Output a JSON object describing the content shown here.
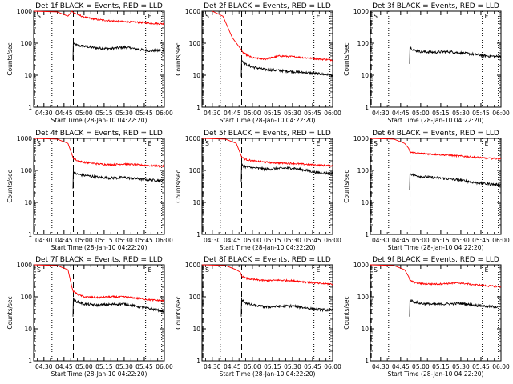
{
  "chart_data": [
    {
      "type": "line",
      "title": "Det 1f BLACK = Events, RED = LLD",
      "xlabel": "Start Time (28-Jan-10 04:22:20)",
      "ylabel": "Counts/sec",
      "yscale": "log",
      "ylim": [
        1,
        1000
      ],
      "xlim": [
        "04:22:20",
        "06:00:00"
      ],
      "x_ticks": [
        "04:30",
        "04:45",
        "05:00",
        "05:15",
        "05:30",
        "05:45",
        "06:00"
      ],
      "y_ticks": [
        "1",
        "10",
        "100",
        "1000"
      ],
      "markers": [
        {
          "label": "S",
          "time": "04:23",
          "style": "dashed"
        },
        {
          "time": "04:35",
          "style": "dotted"
        },
        {
          "time": "04:52",
          "style": "dashed"
        },
        {
          "label": "E",
          "time": "05:43",
          "style": "dotted"
        },
        {
          "time": "05:58",
          "style": "dotted"
        }
      ],
      "x": [
        "04:52",
        "04:55",
        "05:00",
        "05:10",
        "05:20",
        "05:30",
        "05:40",
        "05:50",
        "06:00"
      ],
      "series": [
        {
          "name": "BLACK = Events",
          "color": "#000000",
          "values": [
            100,
            85,
            80,
            70,
            68,
            75,
            65,
            58,
            60
          ]
        },
        {
          "name": "RED = LLD",
          "color": "#ff0000",
          "values": [
            900,
            800,
            650,
            550,
            500,
            470,
            450,
            420,
            400
          ]
        }
      ],
      "red_x": [
        "04:35",
        "04:40",
        "04:45",
        "04:52",
        "05:00",
        "05:20",
        "05:40",
        "06:00"
      ]
    },
    {
      "type": "line",
      "title": "Det 2f BLACK = Events, RED = LLD",
      "xlabel": "Start Time (28-Jan-10 04:22:20)",
      "ylabel": "Counts/sec",
      "yscale": "log",
      "ylim": [
        1,
        1000
      ],
      "x_ticks": [
        "04:30",
        "04:45",
        "05:00",
        "05:15",
        "05:30",
        "05:45",
        "06:00"
      ],
      "y_ticks": [
        "1",
        "10",
        "100",
        "1000"
      ],
      "x": [
        "04:52",
        "04:55",
        "05:00",
        "05:10",
        "05:20",
        "05:30",
        "05:40",
        "05:50",
        "06:00"
      ],
      "series": [
        {
          "name": "BLACK = Events",
          "color": "#000000",
          "values": [
            30,
            22,
            18,
            15,
            14,
            13,
            12,
            11,
            10
          ]
        },
        {
          "name": "RED = LLD",
          "color": "#ff0000",
          "values": [
            55,
            45,
            35,
            32,
            40,
            38,
            35,
            32,
            30
          ]
        }
      ],
      "red_early": [
        {
          "t": "04:30",
          "v": 1000
        },
        {
          "t": "04:38",
          "v": 700
        },
        {
          "t": "04:45",
          "v": 150
        },
        {
          "t": "04:52",
          "v": 60
        }
      ]
    },
    {
      "type": "line",
      "title": "Det 3f BLACK = Events, RED = LLD",
      "xlabel": "Start Time (28-Jan-10 04:22:20)",
      "ylabel": "Counts/sec",
      "yscale": "log",
      "ylim": [
        1,
        1000
      ],
      "x_ticks": [
        "04:30",
        "04:45",
        "05:00",
        "05:15",
        "05:30",
        "05:45",
        "06:00"
      ],
      "y_ticks": [
        "1",
        "10",
        "100",
        "1000"
      ],
      "x": [
        "04:52",
        "04:55",
        "05:00",
        "05:10",
        "05:20",
        "05:30",
        "05:40",
        "05:50",
        "06:00"
      ],
      "series": [
        {
          "name": "BLACK = Events",
          "color": "#000000",
          "values": [
            75,
            60,
            55,
            52,
            55,
            50,
            45,
            40,
            38
          ]
        }
      ]
    },
    {
      "type": "line",
      "title": "Det 4f BLACK = Events, RED = LLD",
      "xlabel": "Start Time (28-Jan-10 04:22:20)",
      "ylabel": "Counts/sec",
      "yscale": "log",
      "ylim": [
        1,
        1000
      ],
      "x_ticks": [
        "04:30",
        "04:45",
        "05:00",
        "05:15",
        "05:30",
        "05:45",
        "06:00"
      ],
      "y_ticks": [
        "1",
        "10",
        "100",
        "1000"
      ],
      "x": [
        "04:52",
        "04:55",
        "05:00",
        "05:10",
        "05:20",
        "05:30",
        "05:40",
        "05:50",
        "06:00"
      ],
      "series": [
        {
          "name": "BLACK = Events",
          "color": "#000000",
          "values": [
            90,
            75,
            70,
            62,
            58,
            60,
            55,
            50,
            48
          ]
        },
        {
          "name": "RED = LLD",
          "color": "#ff0000",
          "values": [
            240,
            200,
            180,
            160,
            150,
            160,
            150,
            140,
            135
          ]
        }
      ]
    },
    {
      "type": "line",
      "title": "Det 5f BLACK = Events, RED = LLD",
      "xlabel": "Start Time (28-Jan-10 04:22:20)",
      "ylabel": "Counts/sec",
      "yscale": "log",
      "ylim": [
        1,
        1000
      ],
      "x_ticks": [
        "04:30",
        "04:45",
        "05:00",
        "05:15",
        "05:30",
        "05:45",
        "06:00"
      ],
      "y_ticks": [
        "1",
        "10",
        "100",
        "1000"
      ],
      "x": [
        "04:52",
        "04:55",
        "05:00",
        "05:10",
        "05:20",
        "05:30",
        "05:40",
        "05:50",
        "06:00"
      ],
      "series": [
        {
          "name": "BLACK = Events",
          "color": "#000000",
          "values": [
            150,
            130,
            120,
            110,
            115,
            120,
            100,
            85,
            80
          ]
        },
        {
          "name": "RED = LLD",
          "color": "#ff0000",
          "values": [
            260,
            220,
            200,
            180,
            170,
            165,
            155,
            145,
            140
          ]
        }
      ]
    },
    {
      "type": "line",
      "title": "Det 6f BLACK = Events, RED = LLD",
      "xlabel": "Start Time (28-Jan-10 04:22:20)",
      "ylabel": "Counts/sec",
      "yscale": "log",
      "ylim": [
        1,
        1000
      ],
      "x_ticks": [
        "04:30",
        "04:45",
        "05:00",
        "05:15",
        "05:30",
        "05:45",
        "06:00"
      ],
      "y_ticks": [
        "1",
        "10",
        "100",
        "1000"
      ],
      "x": [
        "04:52",
        "04:55",
        "05:00",
        "05:10",
        "05:20",
        "05:30",
        "05:40",
        "05:50",
        "06:00"
      ],
      "series": [
        {
          "name": "BLACK = Events",
          "color": "#000000",
          "values": [
            80,
            70,
            65,
            60,
            55,
            50,
            42,
            38,
            35
          ]
        },
        {
          "name": "RED = LLD",
          "color": "#ff0000",
          "values": [
            380,
            350,
            340,
            320,
            300,
            280,
            260,
            240,
            230
          ]
        }
      ]
    },
    {
      "type": "line",
      "title": "Det 7f BLACK = Events, RED = LLD",
      "xlabel": "Start Time (28-Jan-10 04:22:20)",
      "ylabel": "Counts/sec",
      "yscale": "log",
      "ylim": [
        1,
        1000
      ],
      "x_ticks": [
        "04:30",
        "04:45",
        "05:00",
        "05:15",
        "05:30",
        "05:45",
        "06:00"
      ],
      "y_ticks": [
        "1",
        "10",
        "100",
        "1000"
      ],
      "x": [
        "04:52",
        "04:55",
        "05:00",
        "05:10",
        "05:20",
        "05:30",
        "05:40",
        "05:50",
        "06:00"
      ],
      "series": [
        {
          "name": "BLACK = Events",
          "color": "#000000",
          "values": [
            80,
            70,
            60,
            55,
            58,
            60,
            50,
            42,
            35
          ]
        },
        {
          "name": "RED = LLD",
          "color": "#ff0000",
          "values": [
            150,
            120,
            100,
            95,
            100,
            100,
            90,
            80,
            75
          ]
        }
      ]
    },
    {
      "type": "line",
      "title": "Det 8f BLACK = Events, RED = LLD",
      "xlabel": "Start Time (28-Jan-10 04:22:20)",
      "ylabel": "Counts/sec",
      "yscale": "log",
      "ylim": [
        1,
        1000
      ],
      "x_ticks": [
        "04:30",
        "04:45",
        "05:00",
        "05:15",
        "05:30",
        "05:45",
        "06:00"
      ],
      "y_ticks": [
        "1",
        "10",
        "100",
        "1000"
      ],
      "x": [
        "04:52",
        "04:55",
        "05:00",
        "05:10",
        "05:20",
        "05:30",
        "05:40",
        "05:50",
        "06:00"
      ],
      "series": [
        {
          "name": "BLACK = Events",
          "color": "#000000",
          "values": [
            80,
            65,
            55,
            48,
            50,
            52,
            45,
            40,
            38
          ]
        },
        {
          "name": "RED = LLD",
          "color": "#ff0000",
          "values": [
            450,
            380,
            350,
            320,
            330,
            320,
            290,
            260,
            250
          ]
        }
      ]
    },
    {
      "type": "line",
      "title": "Det 9f BLACK = Events, RED = LLD",
      "xlabel": "Start Time (28-Jan-10 04:22:20)",
      "ylabel": "Counts/sec",
      "yscale": "log",
      "ylim": [
        1,
        1000
      ],
      "x_ticks": [
        "04:30",
        "04:45",
        "05:00",
        "05:15",
        "05:30",
        "05:45",
        "06:00"
      ],
      "y_ticks": [
        "1",
        "10",
        "100",
        "1000"
      ],
      "x": [
        "04:52",
        "04:55",
        "05:00",
        "05:10",
        "05:20",
        "05:30",
        "05:40",
        "05:50",
        "06:00"
      ],
      "series": [
        {
          "name": "BLACK = Events",
          "color": "#000000",
          "values": [
            80,
            70,
            62,
            58,
            60,
            62,
            55,
            50,
            48
          ]
        },
        {
          "name": "RED = LLD",
          "color": "#ff0000",
          "values": [
            330,
            280,
            260,
            250,
            260,
            270,
            240,
            220,
            210
          ]
        }
      ]
    }
  ]
}
